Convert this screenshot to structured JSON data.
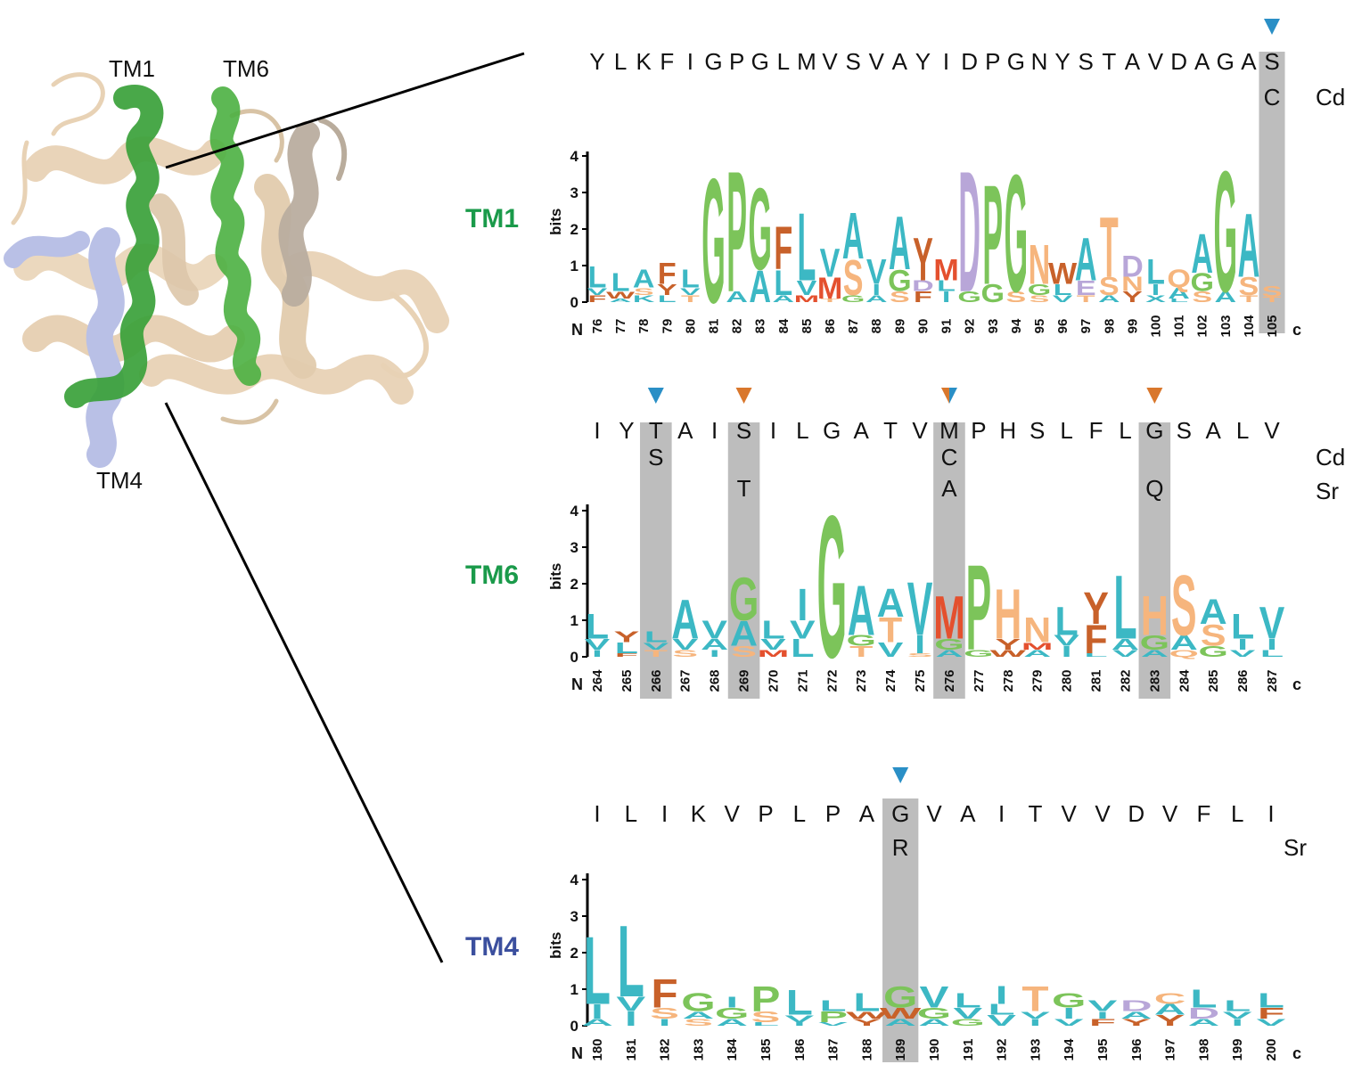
{
  "structure": {
    "labels": {
      "tm1": "TM1",
      "tm6": "TM6",
      "tm4": "TM4"
    }
  },
  "colors": {
    "tm1_title": "#1a9a4a",
    "tm6_title": "#1a9a4a",
    "tm4_title": "#3b4f9e",
    "highlight": "#bdbdbd",
    "marker_blue": "#2a8fc6",
    "marker_orange": "#d9772c",
    "helix_wheat": "#e8d2b5",
    "helix_green": "#3aa13a",
    "helix_lavender": "#b9c0e6",
    "aa_hydrophobic": "#3cb8c4",
    "aa_small": "#7cc45a",
    "aa_polar": "#f6b57d",
    "aa_aromatic": "#c8612a",
    "aa_acidic": "#b8a6d8",
    "aa_sulfur": "#e4502e"
  },
  "panels": [
    {
      "id": "tm1",
      "title": "TM1",
      "title_color": "#1a9a4a",
      "sequence": [
        "Y",
        "L",
        "K",
        "F",
        "I",
        "G",
        "P",
        "G",
        "L",
        "M",
        "V",
        "S",
        "V",
        "A",
        "Y",
        "I",
        "D",
        "P",
        "G",
        "N",
        "Y",
        "S",
        "T",
        "A",
        "V",
        "D",
        "A",
        "G",
        "A",
        "S"
      ],
      "extra_rows": [
        {
          "label": "Cd",
          "entries": [
            {
              "index": 29,
              "letter": "C"
            }
          ]
        }
      ],
      "positions": [
        "76",
        "77",
        "78",
        "79",
        "80",
        "81",
        "82",
        "83",
        "84",
        "85",
        "86",
        "87",
        "88",
        "89",
        "90",
        "91",
        "92",
        "93",
        "94",
        "95",
        "96",
        "97",
        "98",
        "99",
        "100",
        "101",
        "102",
        "103",
        "104",
        "105"
      ],
      "highlights": [
        29
      ],
      "markers": [
        {
          "index": 29,
          "colors": [
            "blue"
          ]
        }
      ],
      "y_label": "bits",
      "y_ticks": [
        "0",
        "1",
        "2",
        "3",
        "4"
      ],
      "n_label": "N",
      "c_label": "c",
      "logo": [
        [
          [
            "L",
            0.6
          ],
          [
            "F",
            0.2
          ],
          [
            "V",
            0.2
          ]
        ],
        [
          [
            "L",
            0.5
          ],
          [
            "W",
            0.2
          ],
          [
            "A",
            0.1
          ]
        ],
        [
          [
            "A",
            0.5
          ],
          [
            "K",
            0.2
          ],
          [
            "S",
            0.2
          ]
        ],
        [
          [
            "F",
            0.6
          ],
          [
            "Y",
            0.3
          ],
          [
            "L",
            0.2
          ]
        ],
        [
          [
            "L",
            0.5
          ],
          [
            "T",
            0.2
          ],
          [
            "V",
            0.2
          ]
        ],
        [
          [
            "G",
            3.5
          ]
        ],
        [
          [
            "P",
            3.4
          ],
          [
            "A",
            0.3
          ]
        ],
        [
          [
            "G",
            2.3
          ],
          [
            "A",
            0.9
          ]
        ],
        [
          [
            "F",
            1.2
          ],
          [
            "L",
            0.7
          ],
          [
            "A",
            0.2
          ]
        ],
        [
          [
            "L",
            1.9
          ],
          [
            "V",
            0.4
          ],
          [
            "M",
            0.2
          ]
        ],
        [
          [
            "V",
            0.8
          ],
          [
            "M",
            0.6
          ],
          [
            "T",
            0.1
          ]
        ],
        [
          [
            "A",
            1.3
          ],
          [
            "S",
            1.0
          ],
          [
            "G",
            0.2
          ]
        ],
        [
          [
            "V",
            0.7
          ],
          [
            "I",
            0.3
          ],
          [
            "A",
            0.2
          ]
        ],
        [
          [
            "A",
            1.5
          ],
          [
            "G",
            0.6
          ],
          [
            "S",
            0.3
          ]
        ],
        [
          [
            "Y",
            1.2
          ],
          [
            "F",
            0.3
          ],
          [
            "D",
            0.3
          ]
        ],
        [
          [
            "I",
            0.3
          ],
          [
            "M",
            0.6
          ],
          [
            "L",
            0.3
          ]
        ],
        [
          [
            "D",
            3.4
          ],
          [
            "G",
            0.3
          ]
        ],
        [
          [
            "P",
            2.8
          ],
          [
            "G",
            0.5
          ]
        ],
        [
          [
            "G",
            3.3
          ],
          [
            "S",
            0.3
          ]
        ],
        [
          [
            "N",
            1.1
          ],
          [
            "G",
            0.3
          ],
          [
            "S",
            0.2
          ]
        ],
        [
          [
            "W",
            0.6
          ],
          [
            "L",
            0.3
          ],
          [
            "V",
            0.2
          ]
        ],
        [
          [
            "A",
            1.2
          ],
          [
            "E",
            0.4
          ],
          [
            "T",
            0.2
          ]
        ],
        [
          [
            "T",
            1.7
          ],
          [
            "S",
            0.5
          ],
          [
            "A",
            0.2
          ]
        ],
        [
          [
            "D",
            0.6
          ],
          [
            "N",
            0.4
          ],
          [
            "Y",
            0.3
          ]
        ],
        [
          [
            "L",
            0.7
          ],
          [
            "I",
            0.3
          ],
          [
            "X",
            0.2
          ]
        ],
        [
          [
            "Q",
            0.5
          ],
          [
            "A",
            0.3
          ],
          [
            "L",
            0.1
          ]
        ],
        [
          [
            "A",
            1.1
          ],
          [
            "G",
            0.5
          ],
          [
            "S",
            0.3
          ]
        ],
        [
          [
            "G",
            3.4
          ],
          [
            "A",
            0.3
          ]
        ],
        [
          [
            "A",
            1.8
          ],
          [
            "S",
            0.5
          ],
          [
            "T",
            0.2
          ]
        ],
        [
          [
            "S",
            0.3
          ],
          [
            "T",
            0.15
          ]
        ]
      ]
    },
    {
      "id": "tm6",
      "title": "TM6",
      "title_color": "#1a9a4a",
      "sequence": [
        "I",
        "Y",
        "T",
        "A",
        "I",
        "S",
        "I",
        "L",
        "G",
        "A",
        "T",
        "V",
        "M",
        "P",
        "H",
        "S",
        "L",
        "F",
        "L",
        "G",
        "S",
        "A",
        "L",
        "V"
      ],
      "extra_rows": [
        {
          "label": "Cd",
          "entries": [
            {
              "index": 2,
              "letter": "S"
            },
            {
              "index": 12,
              "letter": "C"
            }
          ]
        },
        {
          "label": "Sr",
          "entries": [
            {
              "index": 5,
              "letter": "T"
            },
            {
              "index": 12,
              "letter": "A"
            },
            {
              "index": 19,
              "letter": "Q"
            }
          ]
        }
      ],
      "positions": [
        "264",
        "265",
        "266",
        "267",
        "268",
        "269",
        "270",
        "271",
        "272",
        "273",
        "274",
        "275",
        "276",
        "277",
        "278",
        "279",
        "280",
        "281",
        "282",
        "283",
        "284",
        "285",
        "286",
        "287"
      ],
      "highlights": [
        2,
        5,
        12,
        19
      ],
      "markers": [
        {
          "index": 2,
          "colors": [
            "blue"
          ]
        },
        {
          "index": 5,
          "colors": [
            "orange"
          ]
        },
        {
          "index": 12,
          "colors": [
            "orange",
            "blue"
          ]
        },
        {
          "index": 19,
          "colors": [
            "orange"
          ]
        }
      ],
      "y_label": "bits",
      "y_ticks": [
        "0",
        "1",
        "2",
        "3",
        "4"
      ],
      "n_label": "N",
      "c_label": "c",
      "logo": [
        [
          [
            "L",
            0.7
          ],
          [
            "V",
            0.3
          ],
          [
            "I",
            0.2
          ]
        ],
        [
          [
            "L",
            0.3
          ],
          [
            "Y",
            0.3
          ],
          [
            "F",
            0.1
          ]
        ],
        [
          [
            "L",
            0.3
          ],
          [
            "T",
            0.2
          ],
          [
            "V",
            0.2
          ]
        ],
        [
          [
            "A",
            1.1
          ],
          [
            "V",
            0.3
          ],
          [
            "S",
            0.2
          ]
        ],
        [
          [
            "V",
            0.5
          ],
          [
            "I",
            0.2
          ],
          [
            "A",
            0.3
          ]
        ],
        [
          [
            "G",
            1.2
          ],
          [
            "A",
            0.7
          ],
          [
            "S",
            0.3
          ]
        ],
        [
          [
            "L",
            0.5
          ],
          [
            "V",
            0.3
          ],
          [
            "M",
            0.2
          ]
        ],
        [
          [
            "I",
            0.9
          ],
          [
            "L",
            0.5
          ],
          [
            "V",
            0.5
          ]
        ],
        [
          [
            "G",
            4.0
          ]
        ],
        [
          [
            "A",
            1.4
          ],
          [
            "T",
            0.3
          ],
          [
            "G",
            0.3
          ]
        ],
        [
          [
            "A",
            0.8
          ],
          [
            "T",
            0.7
          ],
          [
            "V",
            0.4
          ]
        ],
        [
          [
            "V",
            1.5
          ],
          [
            "I",
            0.5
          ],
          [
            "S",
            0.1
          ]
        ],
        [
          [
            "M",
            1.2
          ],
          [
            "G",
            0.3
          ],
          [
            "A",
            0.2
          ]
        ],
        [
          [
            "P",
            2.4
          ],
          [
            "G",
            0.2
          ]
        ],
        [
          [
            "H",
            1.4
          ],
          [
            "Y",
            0.3
          ],
          [
            "W",
            0.2
          ]
        ],
        [
          [
            "N",
            0.7
          ],
          [
            "A",
            0.2
          ],
          [
            "M",
            0.2
          ]
        ],
        [
          [
            "L",
            0.8
          ],
          [
            "I",
            0.3
          ],
          [
            "V",
            0.3
          ]
        ],
        [
          [
            "Y",
            0.9
          ],
          [
            "F",
            0.8
          ],
          [
            "L",
            0.1
          ]
        ],
        [
          [
            "L",
            1.8
          ],
          [
            "A",
            0.3
          ],
          [
            "V",
            0.2
          ]
        ],
        [
          [
            "H",
            1.1
          ],
          [
            "G",
            0.4
          ],
          [
            "A",
            0.2
          ]
        ],
        [
          [
            "S",
            1.7
          ],
          [
            "A",
            0.4
          ],
          [
            "Q",
            0.2
          ]
        ],
        [
          [
            "A",
            0.7
          ],
          [
            "S",
            0.6
          ],
          [
            "G",
            0.3
          ]
        ],
        [
          [
            "L",
            0.7
          ],
          [
            "I",
            0.3
          ],
          [
            "V",
            0.2
          ]
        ],
        [
          [
            "V",
            0.9
          ],
          [
            "I",
            0.3
          ],
          [
            "L",
            0.2
          ]
        ]
      ]
    },
    {
      "id": "tm4",
      "title": "TM4",
      "title_color": "#3b4f9e",
      "sequence": [
        "I",
        "L",
        "I",
        "K",
        "V",
        "P",
        "L",
        "P",
        "A",
        "G",
        "V",
        "A",
        "I",
        "T",
        "V",
        "V",
        "D",
        "V",
        "F",
        "L",
        "I"
      ],
      "extra_rows": [
        {
          "label": "Sr",
          "entries": [
            {
              "index": 9,
              "letter": "R"
            }
          ]
        }
      ],
      "positions": [
        "180",
        "181",
        "182",
        "183",
        "184",
        "185",
        "186",
        "187",
        "188",
        "189",
        "190",
        "191",
        "192",
        "193",
        "194",
        "195",
        "196",
        "197",
        "198",
        "199",
        "200"
      ],
      "highlights": [
        9
      ],
      "markers": [
        {
          "index": 9,
          "colors": [
            "blue"
          ]
        }
      ],
      "y_label": "bits",
      "y_ticks": [
        "0",
        "1",
        "2",
        "3",
        "4"
      ],
      "n_label": "N",
      "c_label": "c",
      "logo": [
        [
          [
            "L",
            1.9
          ],
          [
            "I",
            0.4
          ],
          [
            "A",
            0.2
          ]
        ],
        [
          [
            "L",
            2.0
          ],
          [
            "I",
            0.4
          ],
          [
            "V",
            0.4
          ]
        ],
        [
          [
            "F",
            0.8
          ],
          [
            "S",
            0.3
          ],
          [
            "I",
            0.2
          ]
        ],
        [
          [
            "G",
            0.5
          ],
          [
            "S",
            0.2
          ],
          [
            "A",
            0.2
          ]
        ],
        [
          [
            "G",
            0.3
          ],
          [
            "I",
            0.3
          ],
          [
            "A",
            0.2
          ]
        ],
        [
          [
            "P",
            0.7
          ],
          [
            "S",
            0.3
          ],
          [
            "L",
            0.1
          ]
        ],
        [
          [
            "L",
            0.7
          ],
          [
            "V",
            0.2
          ],
          [
            "I",
            0.1
          ]
        ],
        [
          [
            "P",
            0.3
          ],
          [
            "L",
            0.3
          ],
          [
            "V",
            0.1
          ]
        ],
        [
          [
            "L",
            0.5
          ],
          [
            "Y",
            0.2
          ],
          [
            "W",
            0.2
          ]
        ],
        [
          [
            "G",
            0.6
          ],
          [
            "W",
            0.3
          ],
          [
            "A",
            0.2
          ]
        ],
        [
          [
            "V",
            0.6
          ],
          [
            "G",
            0.3
          ],
          [
            "A",
            0.2
          ]
        ],
        [
          [
            "L",
            0.4
          ],
          [
            "V",
            0.3
          ],
          [
            "G",
            0.2
          ]
        ],
        [
          [
            "I",
            0.5
          ],
          [
            "V",
            0.3
          ],
          [
            "L",
            0.3
          ]
        ],
        [
          [
            "T",
            0.7
          ],
          [
            "I",
            0.2
          ],
          [
            "V",
            0.2
          ]
        ],
        [
          [
            "G",
            0.4
          ],
          [
            "I",
            0.3
          ],
          [
            "V",
            0.2
          ]
        ],
        [
          [
            "V",
            0.3
          ],
          [
            "F",
            0.2
          ],
          [
            "I",
            0.2
          ]
        ],
        [
          [
            "D",
            0.3
          ],
          [
            "Y",
            0.2
          ],
          [
            "A",
            0.2
          ]
        ],
        [
          [
            "Y",
            0.3
          ],
          [
            "A",
            0.3
          ],
          [
            "C",
            0.3
          ]
        ],
        [
          [
            "L",
            0.5
          ],
          [
            "D",
            0.3
          ],
          [
            "A",
            0.2
          ]
        ],
        [
          [
            "L",
            0.3
          ],
          [
            "I",
            0.2
          ],
          [
            "V",
            0.2
          ]
        ],
        [
          [
            "L",
            0.4
          ],
          [
            "F",
            0.3
          ],
          [
            "V",
            0.2
          ]
        ]
      ]
    }
  ]
}
